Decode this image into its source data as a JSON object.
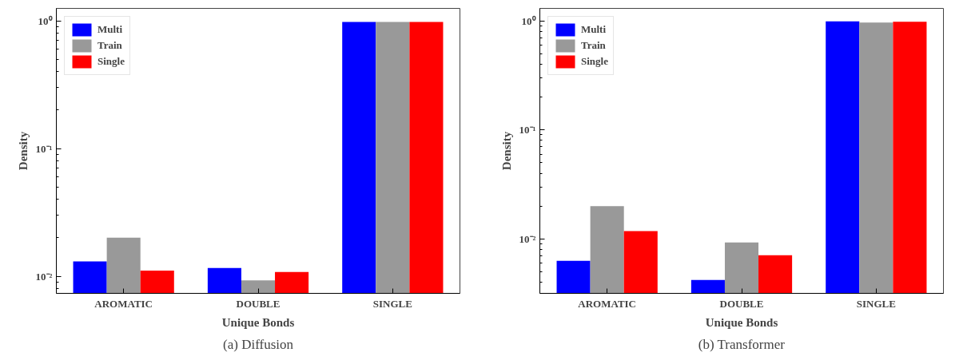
{
  "chart_data": [
    {
      "type": "bar",
      "title": "(a) Diffusion",
      "xlabel": "Unique Bonds",
      "ylabel": "Density",
      "categories": [
        "AROMATIC",
        "DOUBLE",
        "SINGLE"
      ],
      "log": "y",
      "ylim": [
        0.00736,
        1.25
      ],
      "yticks": [
        {
          "value": 0.01,
          "label": "10⁻²"
        },
        {
          "value": 0.1,
          "label": "10⁻¹"
        },
        {
          "value": 1,
          "label": "10⁰"
        }
      ],
      "grid": false,
      "legend": "top left",
      "series": [
        {
          "name": "Multi",
          "color": "#0000ff",
          "values": [
            0.0131,
            0.0116,
            0.98
          ]
        },
        {
          "name": "Train",
          "color": "#999999",
          "values": [
            0.0201,
            0.0093,
            0.98
          ]
        },
        {
          "name": "Single",
          "color": "#ff0000",
          "values": [
            0.0111,
            0.0108,
            0.98
          ]
        }
      ]
    },
    {
      "type": "bar",
      "title": "(b) Transformer",
      "xlabel": "Unique Bonds",
      "ylabel": "Density",
      "categories": [
        "AROMATIC",
        "DOUBLE",
        "SINGLE"
      ],
      "log": "y",
      "ylim": [
        0.00317,
        1.3
      ],
      "yticks": [
        {
          "value": 0.01,
          "label": "10⁻²"
        },
        {
          "value": 0.1,
          "label": "10⁻¹"
        },
        {
          "value": 1,
          "label": "10⁰"
        }
      ],
      "grid": false,
      "legend": "top left",
      "series": [
        {
          "name": "Multi",
          "color": "#0000ff",
          "values": [
            0.0063,
            0.0042,
            0.99
          ]
        },
        {
          "name": "Train",
          "color": "#999999",
          "values": [
            0.02,
            0.0093,
            0.965
          ]
        },
        {
          "name": "Single",
          "color": "#ff0000",
          "values": [
            0.0118,
            0.0071,
            0.98
          ]
        }
      ]
    }
  ]
}
